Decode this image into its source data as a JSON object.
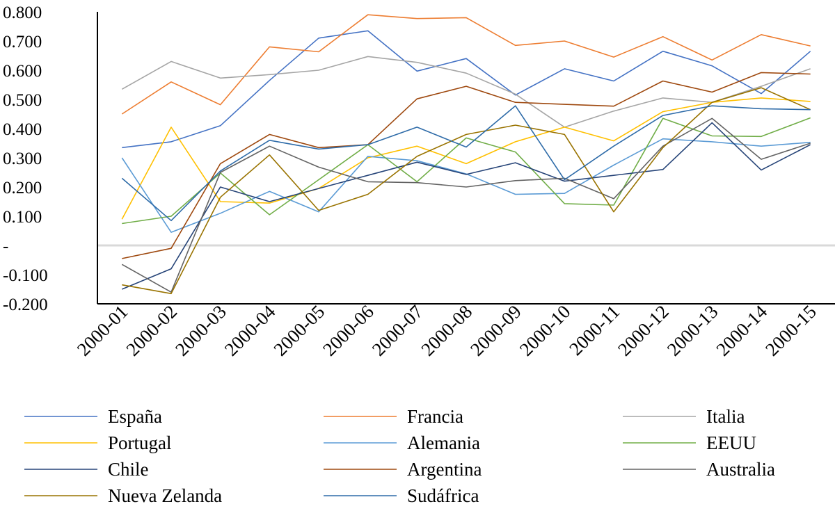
{
  "chart_data": {
    "type": "line",
    "title": "",
    "xlabel": "",
    "ylabel": "",
    "categories": [
      "2000-01",
      "2000-02",
      "2000-03",
      "2000-04",
      "2000-05",
      "2000-06",
      "2000-07",
      "2000-08",
      "2000-09",
      "2000-10",
      "2000-11",
      "2000-12",
      "2000-13",
      "2000-14",
      "2000-15"
    ],
    "ylim": [
      -0.2,
      0.8
    ],
    "yticks": [
      {
        "value": 0.8,
        "label": "0.800"
      },
      {
        "value": 0.7,
        "label": "0.700"
      },
      {
        "value": 0.6,
        "label": "0.600"
      },
      {
        "value": 0.5,
        "label": "0.500"
      },
      {
        "value": 0.4,
        "label": "0.400"
      },
      {
        "value": 0.3,
        "label": "0.300"
      },
      {
        "value": 0.2,
        "label": "0.200"
      },
      {
        "value": 0.1,
        "label": "0.100"
      },
      {
        "value": 0.0,
        "label": "-"
      },
      {
        "value": -0.1,
        "label": "-0.100"
      },
      {
        "value": -0.2,
        "label": "-0.200"
      }
    ],
    "grid": false,
    "zero_line": true,
    "legend_position": "bottom",
    "series": [
      {
        "name": "España",
        "color": "#4472C4",
        "values": [
          0.335,
          0.355,
          0.41,
          0.565,
          0.71,
          0.735,
          0.597,
          0.64,
          0.515,
          0.605,
          0.563,
          0.665,
          0.615,
          0.52,
          0.665
        ]
      },
      {
        "name": "Francia",
        "color": "#ED7D31",
        "values": [
          0.45,
          0.56,
          0.482,
          0.68,
          0.663,
          0.79,
          0.777,
          0.78,
          0.685,
          0.7,
          0.645,
          0.715,
          0.635,
          0.722,
          0.683
        ]
      },
      {
        "name": "Italia",
        "color": "#A5A5A5",
        "values": [
          0.535,
          0.63,
          0.573,
          0.585,
          0.6,
          0.647,
          0.627,
          0.59,
          0.518,
          0.405,
          0.46,
          0.505,
          0.49,
          0.545,
          0.605
        ]
      },
      {
        "name": "Portugal",
        "color": "#FFC000",
        "values": [
          0.09,
          0.405,
          0.15,
          0.145,
          0.195,
          0.3,
          0.34,
          0.28,
          0.355,
          0.405,
          0.358,
          0.458,
          0.49,
          0.505,
          0.493
        ]
      },
      {
        "name": "Alemania",
        "color": "#5B9BD5",
        "values": [
          0.3,
          0.045,
          0.11,
          0.185,
          0.115,
          0.305,
          0.29,
          0.245,
          0.175,
          0.178,
          0.275,
          0.365,
          0.355,
          0.34,
          0.353
        ]
      },
      {
        "name": "EEUU",
        "color": "#70AD47",
        "values": [
          0.075,
          0.1,
          0.248,
          0.105,
          0.225,
          0.345,
          0.218,
          0.368,
          0.32,
          0.143,
          0.138,
          0.435,
          0.375,
          0.373,
          0.437
        ]
      },
      {
        "name": "Chile",
        "color": "#264478",
        "values": [
          -0.15,
          -0.08,
          0.2,
          0.15,
          0.195,
          0.24,
          0.285,
          0.243,
          0.283,
          0.22,
          0.24,
          0.26,
          0.42,
          0.258,
          0.345
        ]
      },
      {
        "name": "Argentina",
        "color": "#9E480E",
        "values": [
          -0.045,
          -0.01,
          0.28,
          0.38,
          0.335,
          0.345,
          0.502,
          0.545,
          0.49,
          0.483,
          0.477,
          0.563,
          0.525,
          0.592,
          0.587
        ]
      },
      {
        "name": "Australia",
        "color": "#636363",
        "values": [
          -0.065,
          -0.16,
          0.25,
          0.34,
          0.268,
          0.218,
          0.215,
          0.2,
          0.222,
          0.23,
          0.16,
          0.34,
          0.435,
          0.295,
          0.35
        ]
      },
      {
        "name": "Nueva Zelanda",
        "color": "#997300",
        "values": [
          -0.135,
          -0.165,
          0.165,
          0.31,
          0.12,
          0.175,
          0.305,
          0.38,
          0.412,
          0.38,
          0.115,
          0.335,
          0.49,
          0.54,
          0.465
        ]
      },
      {
        "name": "Sudáfrica",
        "color": "#2E6BA8",
        "values": [
          0.23,
          0.085,
          0.255,
          0.36,
          0.33,
          0.345,
          0.405,
          0.337,
          0.478,
          0.225,
          0.34,
          0.445,
          0.478,
          0.468,
          0.465
        ]
      }
    ]
  }
}
